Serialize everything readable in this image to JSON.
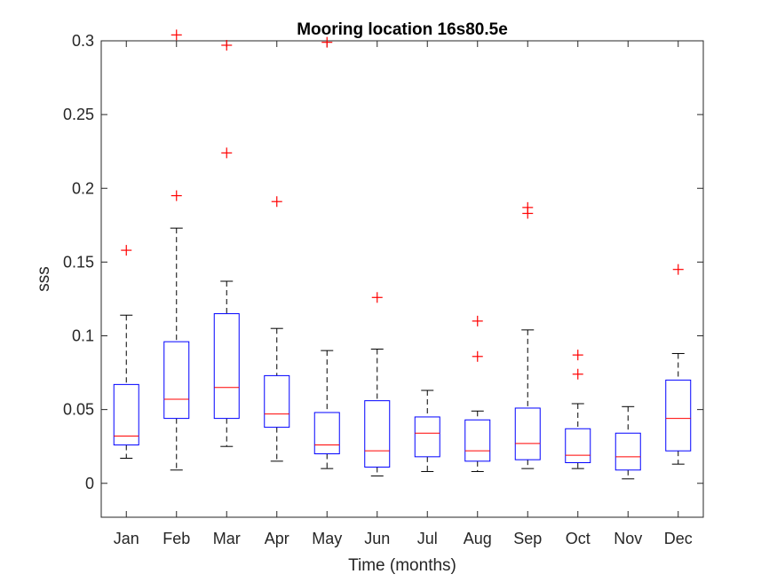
{
  "chart_data": {
    "type": "boxplot",
    "title": "Mooring location 16s80.5e",
    "xlabel": "Time (months)",
    "ylabel": "sss",
    "ylim": [
      -0.023,
      0.3
    ],
    "yticks": [
      0,
      0.05,
      0.1,
      0.15,
      0.2,
      0.25,
      0.3
    ],
    "ytick_labels": [
      "0",
      "0.05",
      "0.1",
      "0.15",
      "0.2",
      "0.25",
      "0.3"
    ],
    "categories": [
      "Jan",
      "Feb",
      "Mar",
      "Apr",
      "May",
      "Jun",
      "Jul",
      "Aug",
      "Sep",
      "Oct",
      "Nov",
      "Dec"
    ],
    "boxes": [
      {
        "label": "Jan",
        "whisker_low": 0.017,
        "q1": 0.026,
        "median": 0.032,
        "q3": 0.067,
        "whisker_high": 0.114,
        "outliers": [
          0.158
        ]
      },
      {
        "label": "Feb",
        "whisker_low": 0.009,
        "q1": 0.044,
        "median": 0.057,
        "q3": 0.096,
        "whisker_high": 0.173,
        "outliers": [
          0.195,
          0.304
        ]
      },
      {
        "label": "Mar",
        "whisker_low": 0.025,
        "q1": 0.044,
        "median": 0.065,
        "q3": 0.115,
        "whisker_high": 0.137,
        "outliers": [
          0.224,
          0.297
        ]
      },
      {
        "label": "Apr",
        "whisker_low": 0.015,
        "q1": 0.038,
        "median": 0.047,
        "q3": 0.073,
        "whisker_high": 0.105,
        "outliers": [
          0.191
        ]
      },
      {
        "label": "May",
        "whisker_low": 0.01,
        "q1": 0.02,
        "median": 0.026,
        "q3": 0.048,
        "whisker_high": 0.09,
        "outliers": [
          0.299
        ]
      },
      {
        "label": "Jun",
        "whisker_low": 0.005,
        "q1": 0.011,
        "median": 0.022,
        "q3": 0.056,
        "whisker_high": 0.091,
        "outliers": [
          0.126
        ]
      },
      {
        "label": "Jul",
        "whisker_low": 0.008,
        "q1": 0.018,
        "median": 0.034,
        "q3": 0.045,
        "whisker_high": 0.063,
        "outliers": []
      },
      {
        "label": "Aug",
        "whisker_low": 0.008,
        "q1": 0.015,
        "median": 0.022,
        "q3": 0.043,
        "whisker_high": 0.049,
        "outliers": [
          0.086,
          0.11
        ]
      },
      {
        "label": "Sep",
        "whisker_low": 0.01,
        "q1": 0.016,
        "median": 0.027,
        "q3": 0.051,
        "whisker_high": 0.104,
        "outliers": [
          0.183,
          0.187
        ]
      },
      {
        "label": "Oct",
        "whisker_low": 0.01,
        "q1": 0.014,
        "median": 0.019,
        "q3": 0.037,
        "whisker_high": 0.054,
        "outliers": [
          0.074,
          0.087
        ]
      },
      {
        "label": "Nov",
        "whisker_low": 0.003,
        "q1": 0.009,
        "median": 0.018,
        "q3": 0.034,
        "whisker_high": 0.052,
        "outliers": []
      },
      {
        "label": "Dec",
        "whisker_low": 0.013,
        "q1": 0.022,
        "median": 0.044,
        "q3": 0.07,
        "whisker_high": 0.088,
        "outliers": [
          0.145
        ]
      }
    ],
    "grid": false,
    "legend": "none",
    "colors": {
      "box": "#0000ff",
      "median": "#ff0000",
      "whisker": "#000000",
      "outlier": "#ff0000",
      "axes": "#262626"
    }
  }
}
